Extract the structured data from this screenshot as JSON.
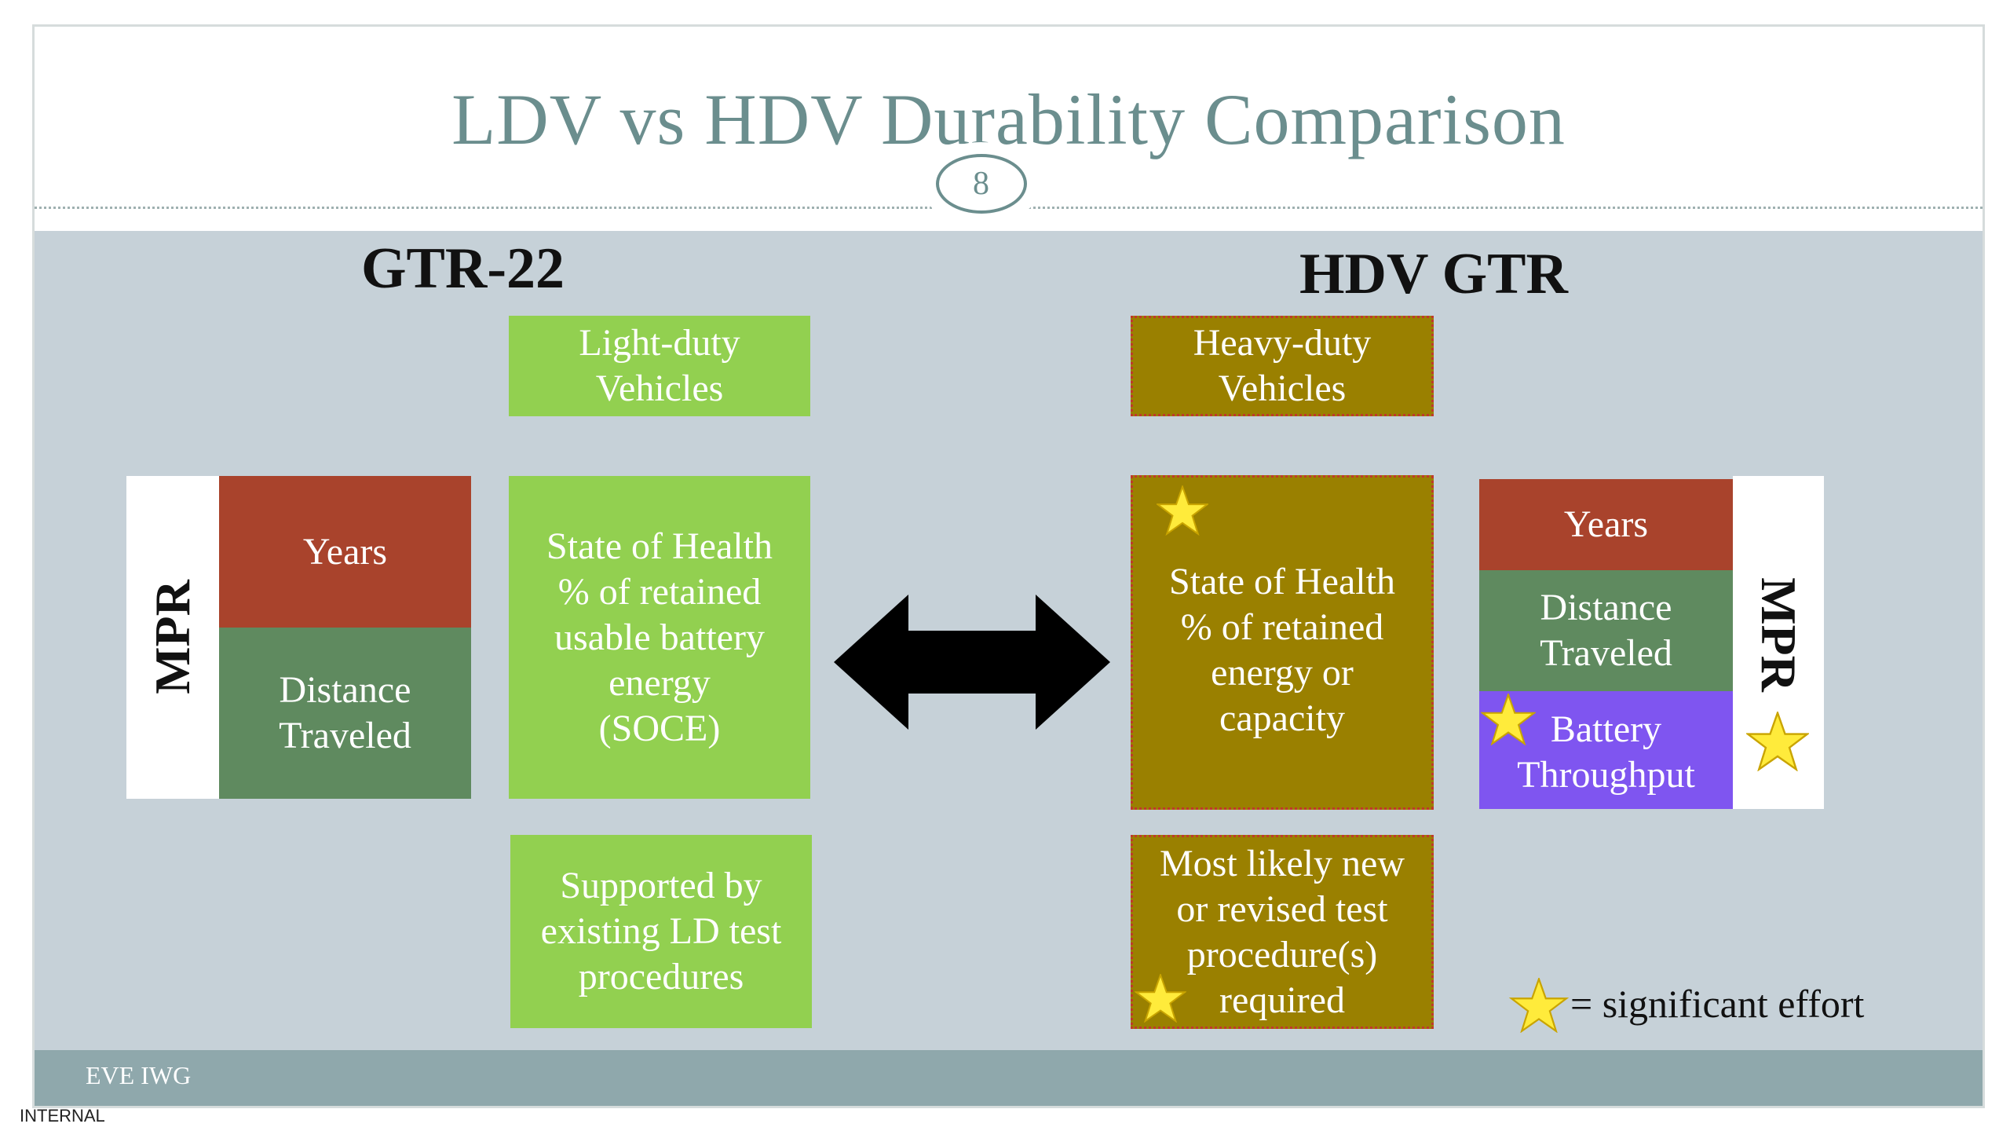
{
  "slide": {
    "title": "LDV vs HDV Durability Comparison",
    "page_number": "8",
    "footer": "EVE IWG",
    "classification": "INTERNAL"
  },
  "left": {
    "heading": "GTR-22",
    "vehicle_box": "Light-duty\nVehicles",
    "mpr_label": "MPR",
    "mpr_items": [
      "Years",
      "Distance\nTraveled"
    ],
    "soh_box": "State of Health\n% of retained\nusable battery\nenergy\n(SOCE)",
    "procedure_box": "Supported by\nexisting LD test\nprocedures"
  },
  "right": {
    "heading": "HDV GTR",
    "vehicle_box": "Heavy-duty\nVehicles",
    "mpr_label": "MPR",
    "mpr_items": [
      "Years",
      "Distance\nTraveled",
      "Battery\nThroughput"
    ],
    "soh_box": "State of Health\n% of retained\nenergy or\ncapacity",
    "procedure_box": "Most likely new\nor revised test\nprocedure(s)\nrequired"
  },
  "legend": {
    "text": "= significant effort",
    "icon": "star-icon"
  },
  "icons": {
    "arrow": "double-arrow-icon",
    "star": "star-icon"
  },
  "colors": {
    "title": "#6b8e8e",
    "content_bg": "#c6d1d8",
    "light_green": "#92d050",
    "olive": "#9a8000",
    "brick_red": "#a9432c",
    "dark_green": "#5f8a5f",
    "purple": "#7f55f0",
    "star_fill": "#ffeb3b",
    "footer_band": "#8fa8ac"
  }
}
